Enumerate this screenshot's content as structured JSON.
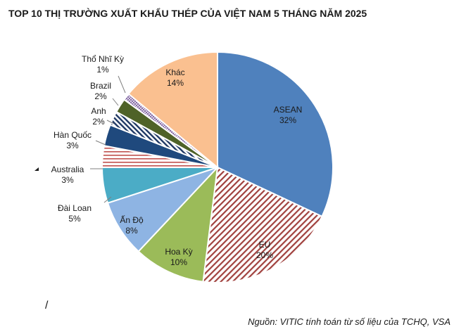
{
  "chart_data": {
    "type": "pie",
    "title": "TOP 10 THỊ TRƯỜNG XUẤT KHẨU THÉP CỦA VIỆT NAM 5 THÁNG NĂM 2025",
    "slices": [
      {
        "label": "ASEAN",
        "value": 32,
        "value_label": "32%",
        "color": "#4f81bd",
        "fill": "solid"
      },
      {
        "label": "EU",
        "value": 20,
        "value_label": "20%",
        "color": "#a0403d",
        "fill": "diagonal-stripes"
      },
      {
        "label": "Hoa Kỳ",
        "value": 10,
        "value_label": "10%",
        "color": "#9bbb59",
        "fill": "solid"
      },
      {
        "label": "Ấn Độ",
        "value": 8,
        "value_label": "8%",
        "color": "#8eb4e3",
        "fill": "solid"
      },
      {
        "label": "Đài Loan",
        "value": 5,
        "value_label": "5%",
        "color": "#4bacc6",
        "fill": "solid"
      },
      {
        "label": "Australia",
        "value": 3,
        "value_label": "3%",
        "color": "#c0504d",
        "fill": "horizontal-stripes"
      },
      {
        "label": "Hàn Quốc",
        "value": 3,
        "value_label": "3%",
        "color": "#1f497d",
        "fill": "solid"
      },
      {
        "label": "Anh",
        "value": 2,
        "value_label": "2%",
        "color": "#1f3864",
        "fill": "diagonal-stripes"
      },
      {
        "label": "Brazil",
        "value": 2,
        "value_label": "2%",
        "color": "#4f6228",
        "fill": "solid"
      },
      {
        "label": "Thổ Nhĩ Kỳ",
        "value": 1,
        "value_label": "1%",
        "color": "#8064a2",
        "fill": "crosshatch"
      },
      {
        "label": "Khác",
        "value": 14,
        "value_label": "14%",
        "color": "#fac090",
        "fill": "solid"
      }
    ],
    "legend": "none"
  },
  "source": "Nguồn: VITIC tính toán từ số liệu của TCHQ, VSA",
  "slash": "/"
}
